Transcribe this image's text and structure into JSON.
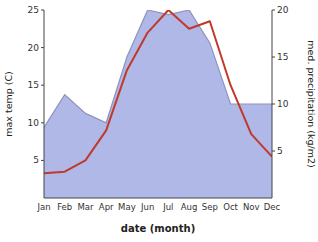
{
  "chart_data": {
    "type": "line",
    "xlabel": "date (month)",
    "ylabel": "max temp (C)",
    "y2label": "med. precipitation (kg/m2)",
    "categories": [
      "Jan",
      "Feb",
      "Mar",
      "Apr",
      "May",
      "Jun",
      "Jul",
      "Aug",
      "Sep",
      "Oct",
      "Nov",
      "Dec"
    ],
    "series": [
      {
        "type": "area",
        "axis": "y2",
        "color": "#b0b8e8",
        "values": [
          7.5,
          11.0,
          9.0,
          8.0,
          15.0,
          20.0,
          19.5,
          20.0,
          16.5,
          10.0,
          10.0,
          10.0
        ]
      },
      {
        "type": "line",
        "color": "#c0392b",
        "values": [
          3.3,
          3.5,
          5.0,
          9.0,
          17.0,
          22.0,
          25.0,
          22.5,
          23.5,
          15.0,
          8.5,
          5.5
        ]
      }
    ],
    "ylim": [
      0,
      25
    ],
    "yticks": [
      5,
      10,
      15,
      20,
      25
    ],
    "y2lim": [
      0,
      20
    ],
    "y2ticks": [
      5,
      10,
      15,
      20
    ]
  }
}
